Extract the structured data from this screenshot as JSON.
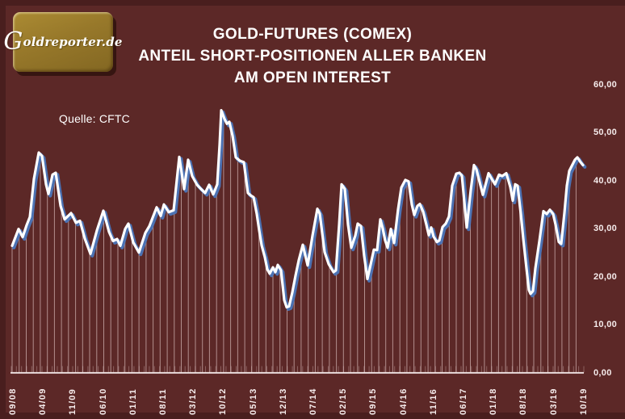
{
  "logo": {
    "g": "G",
    "rest": "oldreporter.de"
  },
  "title": {
    "line1": "GOLD-FUTURES (COMEX)",
    "line2": "ANTEIL SHORT-POSITIONEN ALLER BANKEN",
    "line3": "AM OPEN INTEREST"
  },
  "source_label": "Quelle: CFTC",
  "colors": {
    "background": "#5c2827",
    "frame": "#491e1e",
    "line": "#ffffff",
    "line_shadow": "#4a77be",
    "drop_line": "rgba(250,226,226,0.55)",
    "axis_line": "#f2e6e6",
    "axis_tick": "rgba(240,212,212,0.32)",
    "text": "#ffffff",
    "logo_gold": "#97782a"
  },
  "chart_data": {
    "type": "line",
    "title": "GOLD-FUTURES (COMEX) — ANTEIL SHORT-POSITIONEN ALLER BANKEN AM OPEN INTEREST",
    "source": "Quelle: CFTC",
    "unit": "percent of open interest",
    "ylim": [
      0,
      60
    ],
    "y_ticks": [
      0,
      10,
      20,
      30,
      40,
      50,
      60
    ],
    "y_tick_labels": [
      "0,00",
      "10,00",
      "20,00",
      "30,00",
      "40,00",
      "50,00",
      "60,00"
    ],
    "x_tick_labels": [
      "09/08",
      "04/09",
      "11/09",
      "06/10",
      "01/11",
      "08/11",
      "03/12",
      "10/12",
      "05/13",
      "12/13",
      "07/14",
      "02/15",
      "09/15",
      "04/16",
      "11/16",
      "06/17",
      "01/18",
      "08/18",
      "03/19",
      "10/19"
    ],
    "grid": false,
    "legend": false,
    "points": [
      [
        15,
        26.4
      ],
      [
        23,
        29.9
      ],
      [
        28,
        28.2
      ],
      [
        33,
        30.7
      ],
      [
        37,
        32.4
      ],
      [
        42,
        40.3
      ],
      [
        48,
        45.8
      ],
      [
        52,
        45.1
      ],
      [
        57,
        39.2
      ],
      [
        60,
        37.2
      ],
      [
        65,
        41.2
      ],
      [
        69,
        41.6
      ],
      [
        75,
        34.7
      ],
      [
        80,
        31.9
      ],
      [
        88,
        33.2
      ],
      [
        94,
        31.2
      ],
      [
        99,
        31.6
      ],
      [
        105,
        27.9
      ],
      [
        112,
        24.7
      ],
      [
        120,
        29.6
      ],
      [
        128,
        33.7
      ],
      [
        135,
        29.3
      ],
      [
        140,
        27.4
      ],
      [
        145,
        27.8
      ],
      [
        149,
        26.4
      ],
      [
        155,
        29.9
      ],
      [
        159,
        31.0
      ],
      [
        165,
        27.1
      ],
      [
        172,
        25.0
      ],
      [
        180,
        29.1
      ],
      [
        185,
        30.5
      ],
      [
        194,
        34.4
      ],
      [
        199,
        32.6
      ],
      [
        203,
        35.0
      ],
      [
        209,
        33.4
      ],
      [
        215,
        33.8
      ],
      [
        222,
        44.9
      ],
      [
        228,
        38.2
      ],
      [
        233,
        44.3
      ],
      [
        238,
        40.9
      ],
      [
        244,
        39.1
      ],
      [
        249,
        38.2
      ],
      [
        254,
        37.4
      ],
      [
        259,
        39.1
      ],
      [
        264,
        37.1
      ],
      [
        269,
        39.2
      ],
      [
        272,
        47.5
      ],
      [
        274,
        54.6
      ],
      [
        278,
        52.8
      ],
      [
        281,
        51.8
      ],
      [
        284,
        52.2
      ],
      [
        288,
        49.3
      ],
      [
        292,
        44.8
      ],
      [
        297,
        44.1
      ],
      [
        302,
        43.8
      ],
      [
        307,
        37.4
      ],
      [
        311,
        36.8
      ],
      [
        314,
        36.5
      ],
      [
        318,
        33.0
      ],
      [
        321,
        29.6
      ],
      [
        324,
        26.5
      ],
      [
        328,
        24.0
      ],
      [
        331,
        21.5
      ],
      [
        334,
        20.6
      ],
      [
        338,
        21.9
      ],
      [
        341,
        20.9
      ],
      [
        344,
        22.4
      ],
      [
        348,
        21.3
      ],
      [
        352,
        15.1
      ],
      [
        355,
        13.6
      ],
      [
        358,
        13.8
      ],
      [
        362,
        16.7
      ],
      [
        366,
        20.2
      ],
      [
        370,
        23.4
      ],
      [
        375,
        26.6
      ],
      [
        381,
        22.3
      ],
      [
        387,
        28.5
      ],
      [
        393,
        34.1
      ],
      [
        396,
        33.1
      ],
      [
        402,
        25.1
      ],
      [
        407,
        22.6
      ],
      [
        413,
        20.9
      ],
      [
        416,
        21.3
      ],
      [
        420,
        30.8
      ],
      [
        423,
        39.2
      ],
      [
        427,
        38.2
      ],
      [
        431,
        30.8
      ],
      [
        435,
        26.0
      ],
      [
        440,
        28.5
      ],
      [
        443,
        31.0
      ],
      [
        447,
        30.5
      ],
      [
        451,
        24.3
      ],
      [
        455,
        19.5
      ],
      [
        459,
        22.5
      ],
      [
        463,
        25.6
      ],
      [
        467,
        25.5
      ],
      [
        471,
        31.9
      ],
      [
        474,
        30.0
      ],
      [
        477,
        27.5
      ],
      [
        480,
        26.0
      ],
      [
        484,
        29.9
      ],
      [
        488,
        27.0
      ],
      [
        493,
        34.0
      ],
      [
        497,
        38.5
      ],
      [
        502,
        40.1
      ],
      [
        506,
        39.8
      ],
      [
        510,
        35.0
      ],
      [
        513,
        32.8
      ],
      [
        517,
        34.7
      ],
      [
        520,
        35.1
      ],
      [
        524,
        33.5
      ],
      [
        528,
        30.8
      ],
      [
        531,
        28.6
      ],
      [
        534,
        30.2
      ],
      [
        537,
        28.3
      ],
      [
        541,
        27.2
      ],
      [
        544,
        27.5
      ],
      [
        548,
        30.3
      ],
      [
        552,
        31.0
      ],
      [
        556,
        32.5
      ],
      [
        560,
        38.9
      ],
      [
        565,
        41.4
      ],
      [
        569,
        41.6
      ],
      [
        572,
        41.0
      ],
      [
        578,
        30.2
      ],
      [
        583,
        38.0
      ],
      [
        587,
        43.2
      ],
      [
        590,
        42.3
      ],
      [
        598,
        37.0
      ],
      [
        605,
        41.5
      ],
      [
        608,
        40.6
      ],
      [
        613,
        39.2
      ],
      [
        618,
        41.2
      ],
      [
        622,
        40.9
      ],
      [
        627,
        41.5
      ],
      [
        632,
        38.6
      ],
      [
        635,
        35.8
      ],
      [
        638,
        39.2
      ],
      [
        641,
        38.9
      ],
      [
        645,
        33.0
      ],
      [
        648,
        27.9
      ],
      [
        652,
        21.7
      ],
      [
        655,
        17.2
      ],
      [
        657,
        16.4
      ],
      [
        660,
        17.0
      ],
      [
        663,
        21.7
      ],
      [
        668,
        27.4
      ],
      [
        673,
        33.6
      ],
      [
        677,
        33.0
      ],
      [
        681,
        33.9
      ],
      [
        685,
        33.0
      ],
      [
        688,
        30.8
      ],
      [
        692,
        27.2
      ],
      [
        695,
        26.8
      ],
      [
        699,
        33.3
      ],
      [
        702,
        38.9
      ],
      [
        705,
        42.0
      ],
      [
        712,
        44.3
      ],
      [
        715,
        44.8
      ],
      [
        719,
        43.8
      ],
      [
        722,
        43.2
      ]
    ]
  }
}
